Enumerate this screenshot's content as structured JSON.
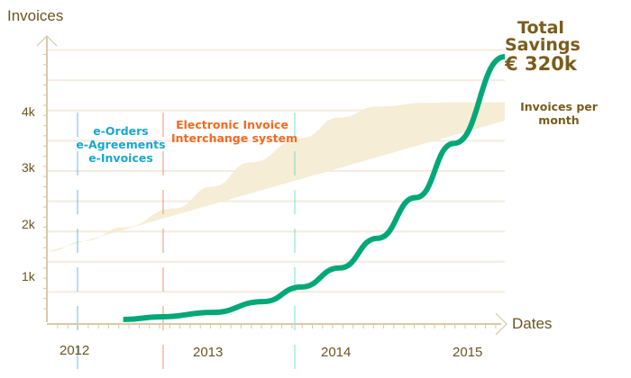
{
  "chart_data": {
    "type": "line",
    "title": "",
    "ylabel": "Invoices",
    "xlabel": "Dates",
    "ylim": [
      0,
      5000
    ],
    "xlim": [
      2011.7,
      2015.3
    ],
    "y_ticks": [
      "1k",
      "2k",
      "3k",
      "4k"
    ],
    "x_ticks": [
      "2012",
      "2013",
      "2014",
      "2015"
    ],
    "series": [
      {
        "name": "Invoices per month",
        "type": "band",
        "x": [
          2011.7,
          2012.0,
          2012.3,
          2012.7,
          2013.0,
          2013.3,
          2013.7,
          2014.0,
          2014.3,
          2014.7,
          2015.0,
          2015.3
        ],
        "low": [
          900,
          1050,
          1250,
          1550,
          1900,
          2350,
          2850,
          3300,
          3550,
          3680,
          3720,
          3720
        ],
        "high": [
          1300,
          1500,
          1750,
          2100,
          2500,
          2950,
          3400,
          3780,
          3980,
          4050,
          4060,
          4060
        ]
      },
      {
        "name": "Total Savings",
        "type": "line",
        "x": [
          2012.3,
          2012.6,
          2013.0,
          2013.4,
          2013.7,
          2014.0,
          2014.3,
          2014.6,
          2014.9,
          2015.3
        ],
        "y": [
          50,
          100,
          180,
          380,
          650,
          1000,
          1550,
          2300,
          3300,
          4900
        ]
      }
    ],
    "annotations": {
      "phase1": [
        "e-Orders",
        "e-Agreements",
        "e-Invoices"
      ],
      "phase2": [
        "Electronic Invoice",
        "Interchange system"
      ],
      "savings": [
        "Total",
        "Savings",
        "€ 320k"
      ],
      "band_label": [
        "Invoices per",
        "month"
      ]
    },
    "colors": {
      "axis": "#d8c9a8",
      "grid": "#f2ece0",
      "band": "#f6edd6",
      "curve": "#00a878",
      "phase1": "#1aa6d0",
      "phase2": "#f26a21",
      "text": "#7a5c1c"
    }
  }
}
